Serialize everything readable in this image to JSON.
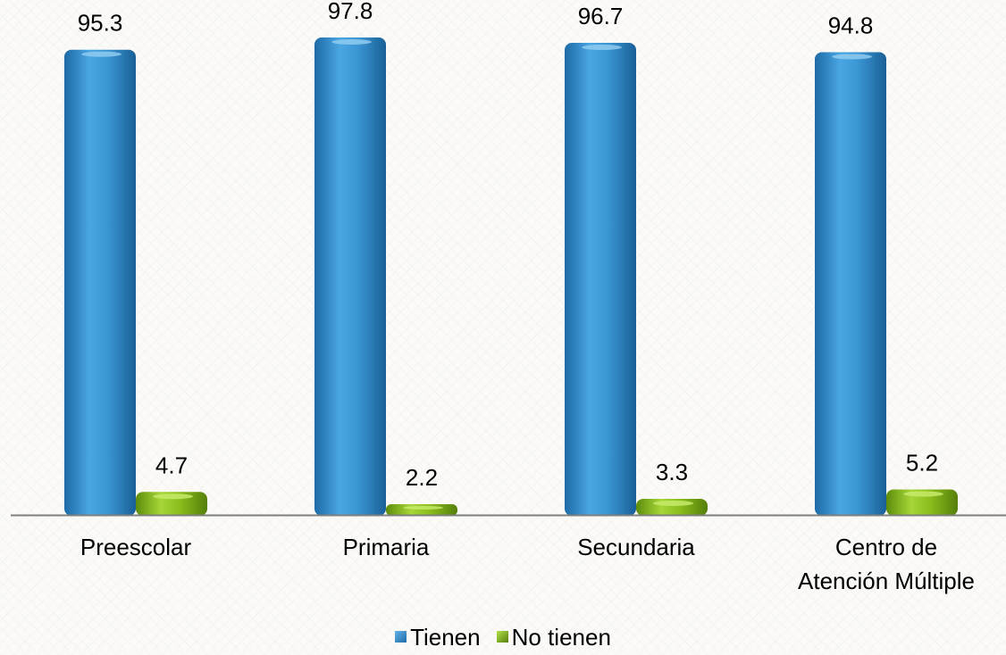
{
  "chart_data": {
    "type": "bar",
    "categories": [
      [
        "Preescolar"
      ],
      [
        "Primaria"
      ],
      [
        "Secundaria"
      ],
      [
        "Centro de",
        "Atención Múltiple"
      ]
    ],
    "series": [
      {
        "name": "Tienen",
        "values": [
          95.3,
          97.8,
          96.7,
          94.8
        ],
        "labels": [
          "95.3",
          "97.8",
          "96.7",
          "94.8"
        ],
        "color": "#3a95d3"
      },
      {
        "name": "No tienen",
        "values": [
          4.7,
          2.2,
          3.3,
          5.2
        ],
        "labels": [
          "4.7",
          "2.2",
          "3.3",
          "5.2"
        ],
        "color": "#8cbf1e"
      }
    ],
    "ylim": [
      0,
      100
    ],
    "grid": false,
    "legend_position": "bottom"
  }
}
